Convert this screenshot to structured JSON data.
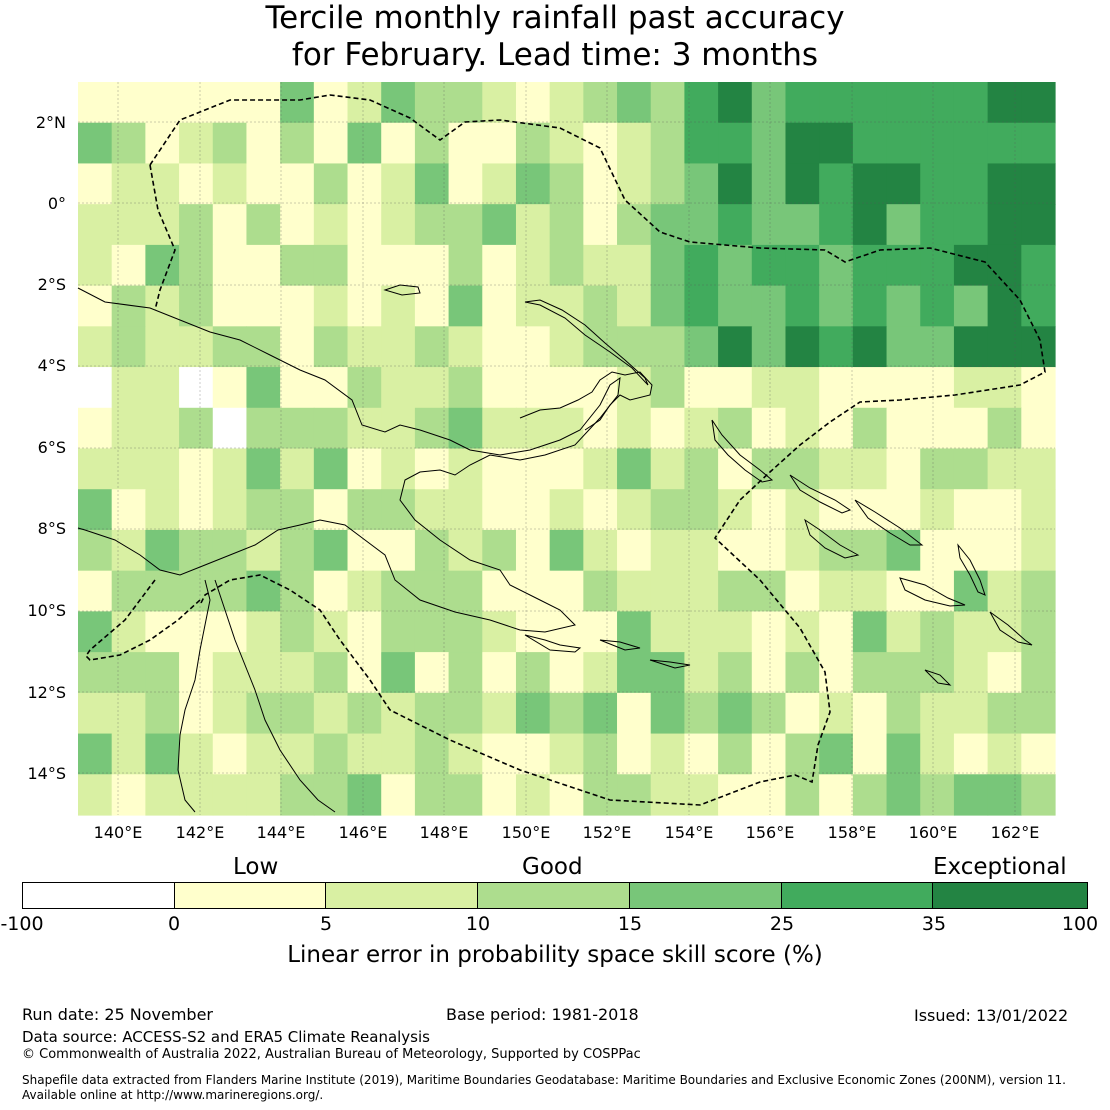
{
  "title_line1": "Tercile monthly rainfall past accuracy",
  "title_line2": "for February. Lead time: 3 months",
  "lat_labels": [
    "2°N",
    "0°",
    "2°S",
    "4°S",
    "6°S",
    "8°S",
    "10°S",
    "12°S",
    "14°S"
  ],
  "lon_labels": [
    "140°E",
    "142°E",
    "144°E",
    "146°E",
    "148°E",
    "150°E",
    "152°E",
    "154°E",
    "156°E",
    "158°E",
    "160°E",
    "162°E"
  ],
  "colorbar": {
    "categories": [
      "Low",
      "Good",
      "Exceptional"
    ],
    "ticks": [
      "-100",
      "0",
      "5",
      "10",
      "15",
      "25",
      "35",
      "100"
    ],
    "colors": [
      "#ffffff",
      "#ffffcc",
      "#d9f0a3",
      "#addd8e",
      "#78c679",
      "#41ab5d",
      "#238443"
    ],
    "label": "Linear error in probability space skill score (%)"
  },
  "footer": {
    "run_date": "Run date: 25 November",
    "base_period": "Base period: 1981-2018",
    "issued": "Issued: 13/01/2022",
    "data_source": "Data source: ACCESS-S2 and ERA5 Climate Reanalysis",
    "copyright": "© Commonwealth of Australia 2022, Australian Bureau of Meteorology, Supported by COSPPac",
    "shapefile_line1": "Shapefile data extracted from Flanders Marine Institute (2019), Maritime Boundaries Geodatabase: Maritime Boundaries and Exclusive Economic Zones (200NM), version 11.",
    "shapefile_line2": "Available online at http://www.marineregions.org/."
  }
}
